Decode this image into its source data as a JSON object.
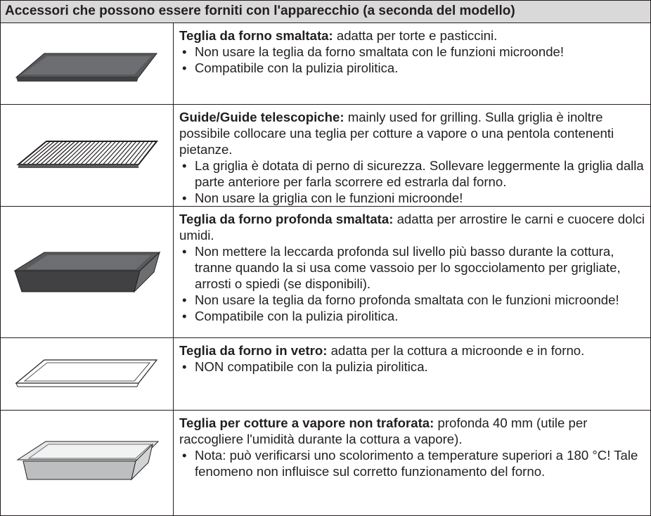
{
  "table": {
    "header": "Accessori che possono essere forniti con l'apparecchio (a seconda del modello)",
    "rows": [
      {
        "title": "Teglia da forno smaltata:",
        "text": "adatta per torte e pasticcini.",
        "bullets": [
          "Non usare la teglia da forno smaltata con le funzioni microonde!",
          "Compatibile con la pulizia pirolitica."
        ]
      },
      {
        "title": "Guide/Guide telescopiche:",
        "text": "mainly used for grilling. Sulla griglia è inoltre possibile collocare una teglia per cotture a vapore o una pentola contenenti pietanze.",
        "bullets": [
          "La griglia è dotata di perno di sicurezza. Sollevare leggermente la griglia dalla parte anteriore per farla scorrere ed estrarla dal forno.",
          "Non usare la griglia con le funzioni microonde!"
        ]
      },
      {
        "title": "Teglia da forno profonda smaltata:",
        "text": "adatta per arrostire le carni e cuocere dolci umidi.",
        "bullets": [
          "Non mettere la leccarda profonda sul livello più basso durante la cottura, tranne quando la si usa come vassoio per lo sgocciolamento per grigliate, arrosti o spiedi (se disponibili).",
          "Non usare la teglia da forno profonda smaltata con le funzioni microonde!",
          "Compatibile con la pulizia pirolitica."
        ]
      },
      {
        "title": "Teglia da forno in vetro:",
        "text": "adatta per la cottura a microonde e in forno.",
        "bullets": [
          "NON compatibile con la pulizia pirolitica."
        ]
      },
      {
        "title": "Teglia per cotture a vapore non traforata:",
        "text": "profonda 40 mm (utile per raccogliere l'umidità durante la cottura a vapore).",
        "bullets": [
          "Nota: può verificarsi uno scolorimento a temperature superiori a 180 °C! Tale fenomeno non influisce sul corretto funzionamento del forno."
        ]
      }
    ]
  }
}
